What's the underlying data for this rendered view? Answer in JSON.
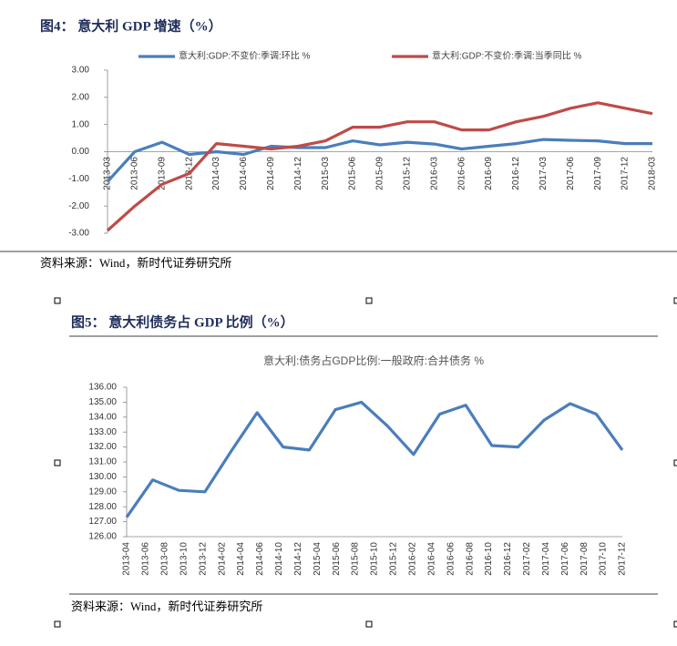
{
  "figures": [
    {
      "caption": "图4：  意大利 GDP 增速（%）",
      "source": "资料来源：Wind，新时代证券研究所"
    },
    {
      "caption": "图5：  意大利债务占 GDP 比例（%）",
      "source": "资料来源：Wind，新时代证券研究所"
    }
  ],
  "chart_data": [
    {
      "type": "line",
      "categories": [
        "2013-03",
        "2013-06",
        "2013-09",
        "2013-12",
        "2014-03",
        "2014-06",
        "2014-09",
        "2014-12",
        "2015-03",
        "2015-06",
        "2015-09",
        "2015-12",
        "2016-03",
        "2016-06",
        "2016-09",
        "2016-12",
        "2017-03",
        "2017-06",
        "2017-09",
        "2017-12",
        "2018-03"
      ],
      "series": [
        {
          "name": "意大利:GDP:不变价:季调:环比 %",
          "color": "#4a7ebb",
          "values": [
            -1.1,
            0.0,
            0.35,
            -0.1,
            0.0,
            -0.1,
            0.2,
            0.15,
            0.15,
            0.4,
            0.25,
            0.35,
            0.28,
            0.1,
            0.2,
            0.3,
            0.45,
            0.42,
            0.4,
            0.3,
            0.3
          ]
        },
        {
          "name": "意大利:GDP:不变价:季调:当季同比 %",
          "color": "#be4b48",
          "values": [
            -2.9,
            -2.0,
            -1.2,
            -0.8,
            0.3,
            0.2,
            0.1,
            0.2,
            0.4,
            0.9,
            0.9,
            1.1,
            1.1,
            0.8,
            0.8,
            1.1,
            1.3,
            1.6,
            1.8,
            1.6,
            1.4
          ]
        }
      ],
      "ylim": [
        -3,
        3
      ],
      "yticks": [
        {
          "value": 3,
          "label": "3.00"
        },
        {
          "value": 2,
          "label": "2.00"
        },
        {
          "value": 1,
          "label": "1.00"
        },
        {
          "value": 0,
          "label": "0.00"
        },
        {
          "value": -1,
          "label": "-1.00"
        },
        {
          "value": -2,
          "label": "-2.00"
        },
        {
          "value": -3,
          "label": "-3.00"
        }
      ],
      "legend": "top",
      "grid": false
    },
    {
      "type": "line",
      "title": "意大利:债务占GDP比例:一般政府:合并债务 %",
      "x_labels": [
        "2013-04",
        "2013-06",
        "2013-08",
        "2013-10",
        "2013-12",
        "2014-02",
        "2014-04",
        "2014-06",
        "2014-10",
        "2014-12",
        "2015-04",
        "2015-06",
        "2015-08",
        "2015-10",
        "2015-12",
        "2016-02",
        "2016-04",
        "2016-06",
        "2016-08",
        "2016-10",
        "2016-12",
        "2017-02",
        "2017-04",
        "2017-06",
        "2017-08",
        "2017-10",
        "2017-12"
      ],
      "series": [
        {
          "color": "#4a7ebb",
          "values": [
            127.3,
            129.8,
            129.1,
            129.0,
            131.7,
            134.3,
            132.0,
            131.8,
            134.5,
            135.0,
            133.4,
            131.5,
            134.2,
            134.8,
            132.1,
            132.0,
            133.8,
            134.9,
            134.2,
            131.8
          ]
        }
      ],
      "ylim": [
        126,
        136
      ],
      "yticks": [
        {
          "value": 136,
          "label": "136.00"
        },
        {
          "value": 135,
          "label": "135.00"
        },
        {
          "value": 134,
          "label": "134.00"
        },
        {
          "value": 133,
          "label": "133.00"
        },
        {
          "value": 132,
          "label": "132.00"
        },
        {
          "value": 131,
          "label": "131.00"
        },
        {
          "value": 130,
          "label": "130.00"
        },
        {
          "value": 129,
          "label": "129.00"
        },
        {
          "value": 128,
          "label": "128.00"
        },
        {
          "value": 127,
          "label": "127.00"
        },
        {
          "value": 126,
          "label": "126.00"
        }
      ],
      "grid": false
    }
  ]
}
